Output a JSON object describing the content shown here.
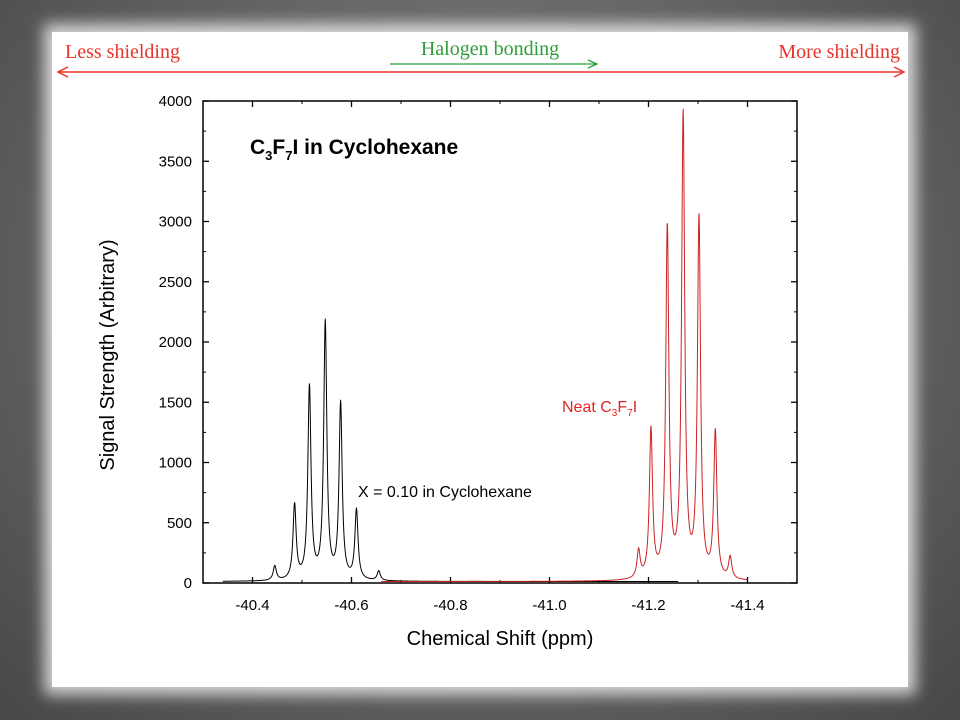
{
  "annotations": {
    "less_shielding": "Less shielding",
    "more_shielding": "More shielding",
    "halogen_bonding": "Halogen bonding",
    "colors": {
      "red": "#e8332a",
      "green": "#2e9e3a"
    }
  },
  "chart_data": {
    "type": "line",
    "title_parts": [
      "C",
      "3",
      "F",
      "7",
      "I in Cyclohexane"
    ],
    "xlabel": "Chemical Shift (ppm)",
    "ylabel": "Signal Strength (Arbitrary)",
    "xlim": [
      -40.3,
      -41.5
    ],
    "ylim": [
      0,
      4000
    ],
    "xticks": [
      -40.4,
      -40.6,
      -40.8,
      -41.0,
      -41.2,
      -41.4
    ],
    "xtick_labels": [
      "-40.4",
      "-40.6",
      "-40.8",
      "-41.0",
      "-41.2",
      "-41.4"
    ],
    "yticks": [
      0,
      500,
      1000,
      1500,
      2000,
      2500,
      3000,
      3500,
      4000
    ],
    "ytick_labels": [
      "0",
      "500",
      "1000",
      "1500",
      "2000",
      "2500",
      "3000",
      "3500",
      "4000"
    ],
    "series": [
      {
        "label_parts": [
          "X = 0.10 in Cyclohexane"
        ],
        "color": "#000000",
        "x_range": [
          -40.34,
          -41.26
        ],
        "peaks": [
          {
            "x": -40.445,
            "y": 120
          },
          {
            "x": -40.485,
            "y": 620
          },
          {
            "x": -40.515,
            "y": 1600
          },
          {
            "x": -40.547,
            "y": 2130
          },
          {
            "x": -40.578,
            "y": 1460
          },
          {
            "x": -40.61,
            "y": 580
          },
          {
            "x": -40.655,
            "y": 80
          }
        ]
      },
      {
        "label_parts": [
          "Neat C",
          "3",
          "F",
          "7",
          "I"
        ],
        "color": "#cc2222",
        "x_range": [
          -40.66,
          -41.4
        ],
        "peaks": [
          {
            "x": -41.18,
            "y": 230
          },
          {
            "x": -41.205,
            "y": 1230
          },
          {
            "x": -41.238,
            "y": 2900
          },
          {
            "x": -41.27,
            "y": 3830
          },
          {
            "x": -41.302,
            "y": 2980
          },
          {
            "x": -41.335,
            "y": 1210
          },
          {
            "x": -41.365,
            "y": 180
          }
        ]
      }
    ]
  }
}
